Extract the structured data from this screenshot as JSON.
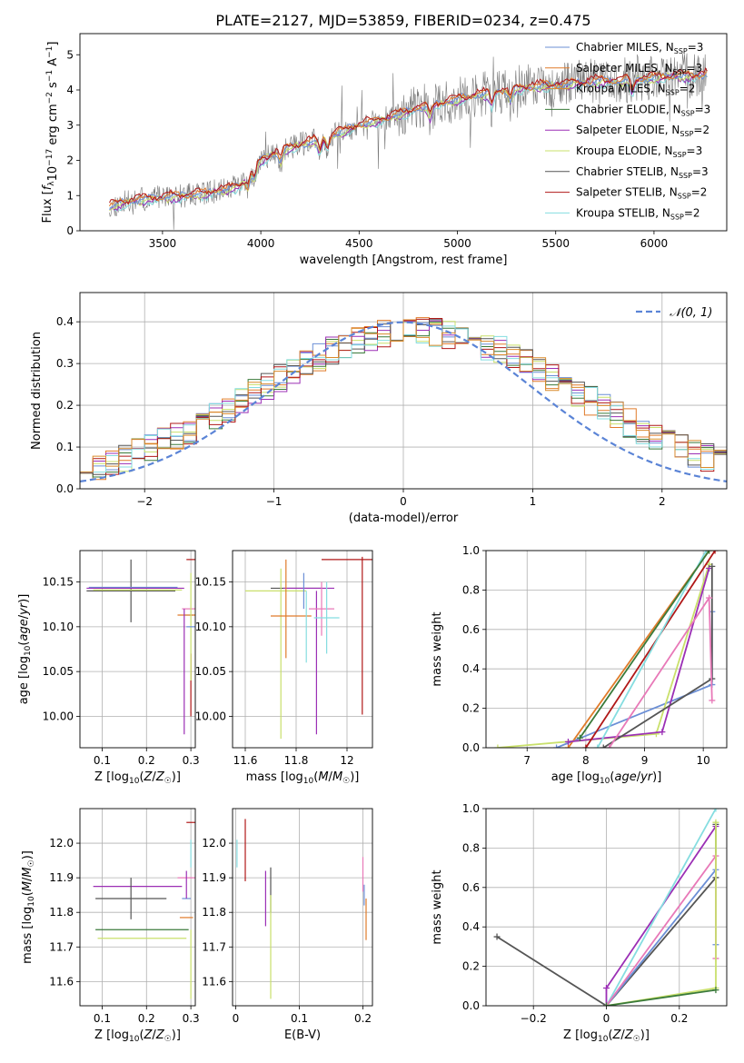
{
  "figure_title": "PLATE=2127, MJD=53859, FIBERID=0234, z=0.475",
  "colors": {
    "Chabrier MILES": "#6b8fd6",
    "Salpeter MILES": "#e07b2a",
    "Kroupa MILES": "#d98a2b",
    "Chabrier ELODIE": "#3a7a3a",
    "Salpeter ELODIE": "#9b2fb5",
    "Kroupa ELODIE": "#c9e06b",
    "Chabrier STELIB": "#555555",
    "Salpeter STELIB": "#b01818",
    "Kroupa STELIB": "#85dde0",
    "pink": "#e879b8",
    "normal": "#5b84d6"
  },
  "chart_data": [
    {
      "id": "spectrum",
      "type": "line",
      "xlabel": "wavelength [Angstrom, rest frame]",
      "ylabel": "Flux [f_λ 10^-17 erg cm^-2 s^-1 A^-1]",
      "xlim": [
        3080,
        6370
      ],
      "ylim": [
        0,
        5.6
      ],
      "xticks": [
        3500,
        4000,
        4500,
        5000,
        5500,
        6000
      ],
      "yticks": [
        0,
        1,
        2,
        3,
        4,
        5
      ],
      "grid": false,
      "legend_position": "top-right",
      "legend": [
        "Chabrier MILES, N_SSP=3",
        "Salpeter MILES, N_SSP=3",
        "Kroupa MILES, N_SSP=2",
        "Chabrier ELODIE, N_SSP=3",
        "Salpeter ELODIE, N_SSP=2",
        "Kroupa ELODIE, N_SSP=3",
        "Chabrier STELIB, N_SSP=3",
        "Salpeter STELIB, N_SSP=2",
        "Kroupa STELIB, N_SSP=2"
      ],
      "continuum": {
        "x": [
          3230,
          3300,
          3400,
          3500,
          3600,
          3700,
          3800,
          3900,
          4000,
          4100,
          4200,
          4300,
          4400,
          4500,
          4600,
          4700,
          4800,
          4900,
          5000,
          5100,
          5200,
          5300,
          5400,
          5500,
          5600,
          5700,
          5800,
          5900,
          6000,
          6100,
          6200,
          6270
        ],
        "y": [
          0.7,
          0.8,
          0.9,
          0.95,
          1.0,
          1.05,
          1.15,
          1.3,
          2.0,
          2.3,
          2.45,
          2.6,
          2.8,
          3.0,
          3.15,
          3.3,
          3.5,
          3.6,
          3.75,
          3.85,
          3.95,
          4.05,
          4.1,
          4.15,
          4.2,
          4.25,
          4.25,
          4.3,
          4.35,
          4.4,
          4.4,
          4.45
        ]
      }
    },
    {
      "id": "residuals",
      "type": "histogram",
      "xlabel": "(data-model)/error",
      "ylabel": "Normed distribution",
      "xlim": [
        -2.5,
        2.5
      ],
      "ylim": [
        0,
        0.47
      ],
      "xticks": [
        -2,
        -1,
        0,
        1,
        2
      ],
      "yticks": [
        0.0,
        0.1,
        0.2,
        0.3,
        0.4
      ],
      "grid": true,
      "legend": [
        "𝒩(0, 1)"
      ],
      "legend_position": "top-right",
      "bin_width": 0.1
    },
    {
      "id": "age-vs-Z",
      "type": "errorbar",
      "xlabel": "Z [log10(Z/Z☉)]",
      "ylabel": "age  [log10(age/yr)]",
      "xlim": [
        0.05,
        0.31
      ],
      "ylim": [
        9.965,
        10.185
      ],
      "xticks": [
        0.1,
        0.2,
        0.3
      ],
      "yticks": [
        10.0,
        10.05,
        10.1,
        10.15
      ],
      "grid": true,
      "points": [
        {
          "c": "Chabrier STELIB",
          "x": 0.165,
          "xerr": 0.1,
          "y": 10.14,
          "yerr": 0.035
        },
        {
          "c": "Chabrier MILES",
          "x": 0.17,
          "xerr": 0.1,
          "y": 10.144,
          "yerr": 0
        },
        {
          "c": "Salpeter ELODIE",
          "x": 0.175,
          "xerr": 0.11,
          "y": 10.143,
          "yerr": 0
        },
        {
          "c": "Kroupa ELODIE",
          "x": 0.18,
          "xerr": 0.1,
          "y": 10.141,
          "yerr": 0
        },
        {
          "c": "Salpeter STELIB",
          "x": 0.3,
          "xerr": 0.01,
          "y": 10.175,
          "yerr": 0.0
        },
        {
          "c": "Salpeter STELIB",
          "x": 0.3,
          "xerr": 0,
          "y": 10.035,
          "yerr": 0.035
        },
        {
          "c": "pink",
          "x": 0.295,
          "xerr": 0.015,
          "y": 10.12,
          "yerr": 0
        },
        {
          "c": "Kroupa STELIB",
          "x": 0.295,
          "xerr": 0.01,
          "y": 10.113,
          "yerr": 0
        },
        {
          "c": "Salpeter MILES",
          "x": 0.29,
          "xerr": 0.02,
          "y": 10.113,
          "yerr": 0
        },
        {
          "c": "Salpeter ELODIE",
          "x": 0.285,
          "xerr": 0,
          "y": 10.05,
          "yerr": 0.07
        },
        {
          "c": "Kroupa ELODIE",
          "x": 0.3,
          "xerr": 0,
          "y": 10.1,
          "yerr": 0.06
        },
        {
          "c": "Chabrier MILES",
          "x": 0.3,
          "xerr": 0.01,
          "y": 10.1,
          "yerr": 0
        }
      ]
    },
    {
      "id": "age-vs-mass",
      "type": "errorbar",
      "xlabel": "mass [log10(M/M☉)]",
      "ylabel": "",
      "xlim": [
        11.55,
        12.1
      ],
      "ylim": [
        9.965,
        10.185
      ],
      "xticks": [
        11.6,
        11.8,
        12.0
      ],
      "yticks": [
        10.0,
        10.05,
        10.1,
        10.15
      ],
      "grid": true,
      "points": [
        {
          "c": "Kroupa ELODIE",
          "x": 11.72,
          "xerr": 0.12,
          "y": 10.14,
          "yerr": 0
        },
        {
          "c": "Chabrier STELIB",
          "x": 11.8,
          "xerr": 0.1,
          "y": 10.143,
          "yerr": 0
        },
        {
          "c": "Salpeter ELODIE",
          "x": 11.85,
          "xerr": 0.1,
          "y": 10.143,
          "yerr": 0
        },
        {
          "c": "Kroupa ELODIE",
          "x": 11.74,
          "xerr": 0,
          "y": 10.07,
          "yerr": 0.095
        },
        {
          "c": "Salpeter MILES",
          "x": 11.76,
          "xerr": 0,
          "y": 10.12,
          "yerr": 0.055
        },
        {
          "c": "Salpeter MILES",
          "x": 11.78,
          "xerr": 0.08,
          "y": 10.112,
          "yerr": 0
        },
        {
          "c": "Chabrier MILES",
          "x": 11.83,
          "xerr": 0,
          "y": 10.14,
          "yerr": 0.02
        },
        {
          "c": "Kroupa STELIB",
          "x": 11.84,
          "xerr": 0,
          "y": 10.1,
          "yerr": 0.04
        },
        {
          "c": "Salpeter ELODIE",
          "x": 11.88,
          "xerr": 0,
          "y": 10.06,
          "yerr": 0.08
        },
        {
          "c": "pink",
          "x": 11.9,
          "xerr": 0.05,
          "y": 10.12,
          "yerr": 0.03
        },
        {
          "c": "Kroupa STELIB",
          "x": 11.92,
          "xerr": 0.05,
          "y": 10.11,
          "yerr": 0.04
        },
        {
          "c": "Salpeter STELIB",
          "x": 12.05,
          "xerr": 0.15,
          "y": 10.175,
          "yerr": 0
        },
        {
          "c": "Salpeter STELIB",
          "x": 12.06,
          "xerr": 0,
          "y": 10.09,
          "yerr": 0.088
        }
      ]
    },
    {
      "id": "weight-vs-age",
      "type": "line",
      "xlabel": "age  [log10(age/yr)]",
      "ylabel": "mass weight",
      "xlim": [
        6.3,
        10.4
      ],
      "ylim": [
        0,
        1.0
      ],
      "xticks": [
        7,
        8,
        9,
        10
      ],
      "yticks": [
        0.0,
        0.2,
        0.4,
        0.6,
        0.8,
        1.0
      ],
      "grid": true,
      "series": [
        {
          "c": "Chabrier MILES",
          "x": [
            7.5,
            10.15,
            10.15
          ],
          "y": [
            0.0,
            0.32,
            0.69
          ]
        },
        {
          "c": "Salpeter MILES",
          "x": [
            7.7,
            10.1
          ],
          "y": [
            0.0,
            1.0
          ]
        },
        {
          "c": "Kroupa ELODIE",
          "x": [
            6.5,
            9.2,
            10.1,
            10.1
          ],
          "y": [
            0.0,
            0.07,
            0.93,
            0.93
          ]
        },
        {
          "c": "Salpeter ELODIE",
          "x": [
            7.7,
            9.3,
            10.1
          ],
          "y": [
            0.03,
            0.08,
            0.91
          ]
        },
        {
          "c": "Chabrier STELIB",
          "x": [
            8.3,
            10.15,
            10.15
          ],
          "y": [
            0.0,
            0.35,
            0.92
          ]
        },
        {
          "c": "Salpeter STELIB",
          "x": [
            8.0,
            10.2
          ],
          "y": [
            0.0,
            1.0
          ]
        },
        {
          "c": "Kroupa STELIB",
          "x": [
            8.2,
            10.05
          ],
          "y": [
            0.0,
            1.0
          ]
        },
        {
          "c": "pink",
          "x": [
            8.4,
            10.1,
            10.15
          ],
          "y": [
            0.0,
            0.76,
            0.24
          ]
        },
        {
          "c": "Chabrier ELODIE",
          "x": [
            7.9,
            10.1
          ],
          "y": [
            0.05,
            1.0
          ]
        }
      ]
    },
    {
      "id": "mass-vs-Z",
      "type": "errorbar",
      "xlabel": "Z [log10(Z/Z☉)]",
      "ylabel": "mass [log10(M/M☉)]",
      "xlim": [
        0.05,
        0.31
      ],
      "ylim": [
        11.53,
        12.1
      ],
      "xticks": [
        0.1,
        0.2,
        0.3
      ],
      "yticks": [
        11.6,
        11.7,
        11.8,
        11.9,
        12.0
      ],
      "grid": true,
      "points": [
        {
          "c": "Salpeter STELIB",
          "x": 0.3,
          "xerr": 0.01,
          "y": 12.06,
          "yerr": 0
        },
        {
          "c": "Kroupa STELIB",
          "x": 0.3,
          "xerr": 0,
          "y": 11.97,
          "yerr": 0.04
        },
        {
          "c": "Salpeter ELODIE",
          "x": 0.18,
          "xerr": 0.1,
          "y": 11.875,
          "yerr": 0
        },
        {
          "c": "pink",
          "x": 0.29,
          "xerr": 0.02,
          "y": 11.9,
          "yerr": 0
        },
        {
          "c": "Chabrier STELIB",
          "x": 0.165,
          "xerr": 0.08,
          "y": 11.84,
          "yerr": 0.06
        },
        {
          "c": "Chabrier MILES",
          "x": 0.29,
          "xerr": 0.01,
          "y": 11.84,
          "yerr": 0
        },
        {
          "c": "Salpeter MILES",
          "x": 0.29,
          "xerr": 0.015,
          "y": 11.785,
          "yerr": 0
        },
        {
          "c": "Chabrier ELODIE",
          "x": 0.19,
          "xerr": 0.105,
          "y": 11.75,
          "yerr": 0
        },
        {
          "c": "Kroupa ELODIE",
          "x": 0.19,
          "xerr": 0.1,
          "y": 11.725,
          "yerr": 0
        },
        {
          "c": "Kroupa ELODIE",
          "x": 0.3,
          "xerr": 0,
          "y": 11.65,
          "yerr": 0.1
        },
        {
          "c": "Salpeter ELODIE",
          "x": 0.29,
          "xerr": 0,
          "y": 11.88,
          "yerr": 0.04
        }
      ]
    },
    {
      "id": "mass-vs-ebv",
      "type": "errorbar",
      "xlabel": "E(B-V)",
      "ylabel": "",
      "xlim": [
        -0.005,
        0.215
      ],
      "ylim": [
        11.53,
        12.1
      ],
      "xticks": [
        0.0,
        0.1,
        0.2
      ],
      "yticks": [
        11.6,
        11.7,
        11.8,
        11.9,
        12.0
      ],
      "grid": true,
      "points": [
        {
          "c": "Kroupa STELIB",
          "x": 0.002,
          "xerr": 0,
          "y": 11.97,
          "yerr": 0.04
        },
        {
          "c": "Salpeter STELIB",
          "x": 0.015,
          "xerr": 0,
          "y": 11.98,
          "yerr": 0.09
        },
        {
          "c": "Salpeter ELODIE",
          "x": 0.047,
          "xerr": 0,
          "y": 11.84,
          "yerr": 0.08
        },
        {
          "c": "Chabrier STELIB",
          "x": 0.055,
          "xerr": 0,
          "y": 11.865,
          "yerr": 0.065
        },
        {
          "c": "Kroupa ELODIE",
          "x": 0.055,
          "xerr": 0,
          "y": 11.7,
          "yerr": 0.15
        },
        {
          "c": "pink",
          "x": 0.2,
          "xerr": 0,
          "y": 11.91,
          "yerr": 0.05
        },
        {
          "c": "Chabrier MILES",
          "x": 0.202,
          "xerr": 0,
          "y": 11.85,
          "yerr": 0.03
        },
        {
          "c": "Salpeter MILES",
          "x": 0.205,
          "xerr": 0,
          "y": 11.78,
          "yerr": 0.06
        }
      ]
    },
    {
      "id": "weight-vs-Z",
      "type": "line",
      "xlabel": "Z [log10(Z/Z☉)]",
      "ylabel": "mass weight",
      "xlim": [
        -0.33,
        0.33
      ],
      "ylim": [
        0,
        1.0
      ],
      "xticks": [
        -0.2,
        0.0,
        0.2
      ],
      "yticks": [
        0.0,
        0.2,
        0.4,
        0.6,
        0.8,
        1.0
      ],
      "grid": true,
      "series": [
        {
          "c": "Chabrier STELIB",
          "x": [
            -0.3,
            0.0,
            0.3,
            0.3
          ],
          "y": [
            0.35,
            0.0,
            0.65,
            0.92
          ]
        },
        {
          "c": "Salpeter ELODIE",
          "x": [
            0.0,
            0.0,
            0.3
          ],
          "y": [
            0.0,
            0.09,
            0.91
          ]
        },
        {
          "c": "Chabrier MILES",
          "x": [
            0.0,
            0.3,
            0.3
          ],
          "y": [
            0.0,
            0.69,
            0.31
          ]
        },
        {
          "c": "Kroupa STELIB",
          "x": [
            0.0,
            0.3
          ],
          "y": [
            0.0,
            1.0
          ]
        },
        {
          "c": "pink",
          "x": [
            0.0,
            0.3,
            0.3
          ],
          "y": [
            0.0,
            0.76,
            0.24
          ]
        },
        {
          "c": "Kroupa ELODIE",
          "x": [
            0.0,
            0.3,
            0.3
          ],
          "y": [
            0.0,
            0.09,
            0.93
          ]
        },
        {
          "c": "Chabrier ELODIE",
          "x": [
            0.0,
            0.3
          ],
          "y": [
            0.0,
            0.08
          ]
        }
      ]
    }
  ]
}
